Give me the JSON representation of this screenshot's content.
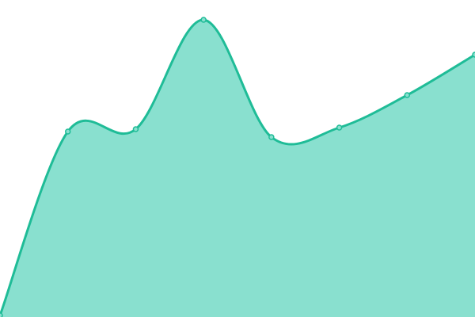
{
  "chart_data": {
    "type": "area",
    "x": [
      0,
      1,
      2,
      3,
      4,
      5,
      6,
      7
    ],
    "values": [
      2,
      234,
      237,
      375,
      227,
      239,
      280,
      331
    ],
    "ylim": [
      0,
      400
    ],
    "smooth": true,
    "grid": false,
    "axes_visible": false,
    "title": "",
    "xlabel": "",
    "ylabel": "",
    "colors": {
      "line": "#1fbc97",
      "fill": "#89e0cf",
      "marker_fill": "#89e0cf",
      "marker_stroke": "#1fbc97",
      "background": "#ffffff"
    }
  }
}
